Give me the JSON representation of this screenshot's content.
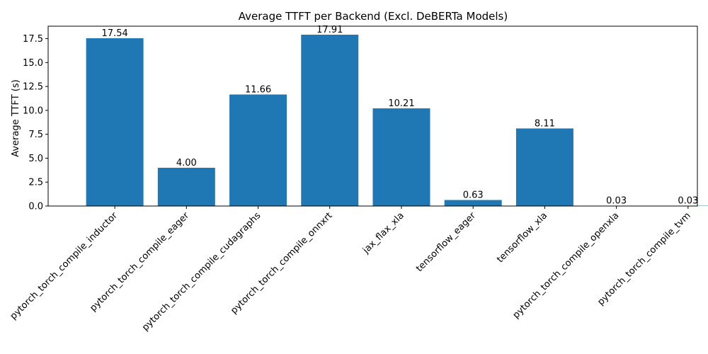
{
  "chart_data": {
    "type": "bar",
    "title": "Average TTFT per Backend (Excl. DeBERTa Models)",
    "xlabel": "",
    "ylabel": "Average TTFT (s)",
    "categories": [
      "pytorch_torch_compile_inductor",
      "pytorch_torch_compile_eager",
      "pytorch_torch_compile_cudagraphs",
      "pytorch_torch_compile_onnxrt",
      "jax_flax_xla",
      "tensorflow_eager",
      "tensorflow_xla",
      "pytorch_torch_compile_openxla",
      "pytorch_torch_compile_tvm"
    ],
    "values": [
      17.54,
      4.0,
      11.66,
      17.91,
      10.21,
      0.63,
      8.11,
      0.03,
      0.03
    ],
    "value_labels": [
      "17.54",
      "4.00",
      "11.66",
      "17.91",
      "10.21",
      "0.63",
      "8.11",
      "0.03",
      "0.03"
    ],
    "yticks": [
      0.0,
      2.5,
      5.0,
      7.5,
      10.0,
      12.5,
      15.0,
      17.5
    ],
    "ytick_labels": [
      "0.0",
      "2.5",
      "5.0",
      "7.5",
      "10.0",
      "12.5",
      "15.0",
      "17.5"
    ],
    "ylim": [
      0,
      18.8
    ],
    "grid": false,
    "legend": "none",
    "bar_color": "#1f77b4"
  }
}
